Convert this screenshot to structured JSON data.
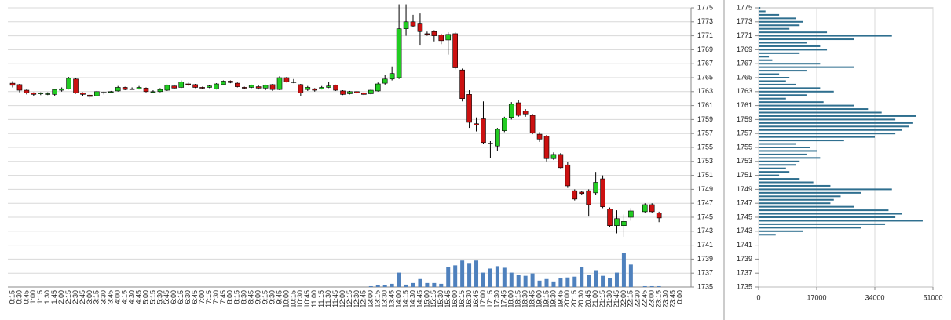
{
  "chart_data": [
    {
      "type": "candlestick",
      "categories": [
        "0:15",
        "0:30",
        "0:45",
        "1:00",
        "1:15",
        "1:30",
        "1:45",
        "2:00",
        "2:15",
        "2:30",
        "2:45",
        "3:00",
        "3:15",
        "3:30",
        "3:45",
        "4:00",
        "4:15",
        "4:30",
        "4:45",
        "5:00",
        "5:15",
        "5:30",
        "5:45",
        "6:00",
        "6:15",
        "6:30",
        "6:45",
        "7:00",
        "7:15",
        "7:30",
        "7:45",
        "8:00",
        "8:15",
        "8:30",
        "8:45",
        "9:00",
        "9:15",
        "9:30",
        "9:45",
        "10:00",
        "10:15",
        "10:30",
        "10:45",
        "11:00",
        "11:15",
        "11:30",
        "11:45",
        "12:00",
        "12:15",
        "12:30",
        "12:45",
        "13:00",
        "13:15",
        "13:30",
        "13:45",
        "14:00",
        "14:15",
        "14:30",
        "14:45",
        "15:00",
        "15:15",
        "15:30",
        "15:45",
        "16:00",
        "16:15",
        "16:30",
        "16:45",
        "17:00",
        "17:15",
        "17:30",
        "17:45",
        "18:00",
        "18:15",
        "18:30",
        "18:45",
        "19:00",
        "19:15",
        "19:30",
        "19:45",
        "20:00",
        "20:15",
        "20:30",
        "20:45",
        "21:00",
        "21:15",
        "21:30",
        "21:45",
        "22:00",
        "22:15",
        "22:30",
        "22:45",
        "23:00",
        "23:15",
        "23:30",
        "23:45",
        "0:00"
      ],
      "open": [
        1764.2,
        1764.0,
        1763.2,
        1762.8,
        1762.7,
        1762.7,
        1762.6,
        1763.2,
        1763.4,
        1764.8,
        1762.8,
        1762.5,
        1762.4,
        1762.8,
        1762.9,
        1763.1,
        1763.6,
        1763.4,
        1763.4,
        1763.5,
        1763.0,
        1763.0,
        1763.2,
        1763.8,
        1763.6,
        1764.1,
        1764.0,
        1763.6,
        1763.6,
        1763.4,
        1764.0,
        1764.5,
        1764.2,
        1763.6,
        1763.6,
        1763.7,
        1763.5,
        1764.0,
        1763.3,
        1765.0,
        1764.4,
        1764.0,
        1763.3,
        1763.4,
        1763.4,
        1763.6,
        1763.9,
        1763.1,
        1762.7,
        1763.0,
        1762.8,
        1762.7,
        1763.1,
        1764.2,
        1764.8,
        1765.0,
        1772.0,
        1773.0,
        1772.8,
        1771.3,
        1771.6,
        1771.1,
        1770.4,
        1771.3,
        1766.1,
        1762.6,
        1758.4,
        1759.1,
        1755.6,
        1755.2,
        1757.4,
        1759.3,
        1761.4,
        1760.2,
        1759.6,
        1756.9,
        1756.6,
        1753.4,
        1754.0,
        1752.5,
        1748.8,
        1748.6,
        1748.8,
        1748.5,
        1750.5,
        1746.2,
        1743.8,
        1743.8,
        1745.0,
        null,
        1745.8,
        1746.8,
        1745.6,
        null,
        null,
        null
      ],
      "high": [
        1764.5,
        1764.1,
        1763.3,
        1762.9,
        1762.9,
        1762.9,
        1763.4,
        1763.6,
        1765.1,
        1764.9,
        1762.9,
        1762.6,
        1763.1,
        1763.0,
        1763.1,
        1763.8,
        1763.7,
        1763.6,
        1763.8,
        1763.6,
        1763.2,
        1763.5,
        1764.0,
        1764.0,
        1764.6,
        1764.3,
        1764.1,
        1763.7,
        1763.9,
        1764.2,
        1764.6,
        1764.6,
        1764.3,
        1763.7,
        1764.0,
        1763.9,
        1764.0,
        1764.1,
        1765.2,
        1765.1,
        1764.8,
        1764.1,
        1763.8,
        1763.5,
        1763.8,
        1764.4,
        1764.0,
        1763.2,
        1763.1,
        1763.1,
        1762.9,
        1763.3,
        1764.3,
        1765.4,
        1766.6,
        1775.5,
        1775.5,
        1774.0,
        1774.2,
        1771.6,
        1771.8,
        1771.3,
        1771.5,
        1771.5,
        1766.3,
        1763.2,
        1759.3,
        1761.6,
        1755.9,
        1757.8,
        1759.4,
        1761.5,
        1761.8,
        1760.5,
        1759.8,
        1757.2,
        1756.8,
        1754.3,
        1754.2,
        1752.9,
        1749.0,
        1748.8,
        1749.0,
        1751.5,
        1751.0,
        1746.4,
        1746.0,
        1745.4,
        1746.3,
        null,
        1747.0,
        1747.0,
        1745.8,
        null,
        null,
        null
      ],
      "low": [
        1763.6,
        1762.9,
        1762.6,
        1762.4,
        1762.5,
        1762.5,
        1762.4,
        1763.0,
        1763.3,
        1762.7,
        1762.4,
        1762.0,
        1762.3,
        1762.6,
        1762.8,
        1763.0,
        1763.2,
        1763.3,
        1763.3,
        1762.9,
        1762.9,
        1762.9,
        1763.1,
        1763.4,
        1763.5,
        1763.8,
        1763.5,
        1763.4,
        1763.5,
        1763.3,
        1763.9,
        1764.2,
        1763.6,
        1763.4,
        1763.5,
        1763.3,
        1763.2,
        1763.1,
        1763.2,
        1764.3,
        1764.2,
        1762.4,
        1763.1,
        1763.0,
        1763.3,
        1763.5,
        1763.1,
        1762.5,
        1762.6,
        1762.7,
        1762.5,
        1762.6,
        1763.0,
        1764.0,
        1764.6,
        1764.8,
        1771.0,
        1772.2,
        1769.6,
        1771.0,
        1770.2,
        1769.8,
        1768.3,
        1766.2,
        1761.6,
        1757.8,
        1757.3,
        1755.5,
        1753.5,
        1754.5,
        1757.2,
        1759.0,
        1759.4,
        1759.4,
        1756.9,
        1755.8,
        1753.0,
        1753.2,
        1752.0,
        1749.2,
        1747.4,
        1748.2,
        1745.1,
        1748.2,
        1746.3,
        1743.6,
        1742.7,
        1742.2,
        1744.5,
        null,
        1745.6,
        1745.6,
        1744.3,
        null,
        null,
        null
      ],
      "close": [
        1763.9,
        1763.2,
        1762.8,
        1762.6,
        1762.8,
        1762.7,
        1763.3,
        1763.4,
        1764.9,
        1762.8,
        1762.6,
        1762.3,
        1763.0,
        1762.9,
        1763.0,
        1763.6,
        1763.3,
        1763.4,
        1763.6,
        1763.0,
        1763.0,
        1763.3,
        1763.9,
        1763.5,
        1764.4,
        1764.0,
        1763.6,
        1763.5,
        1763.8,
        1764.1,
        1764.5,
        1764.3,
        1763.7,
        1763.5,
        1763.9,
        1763.5,
        1763.9,
        1763.3,
        1765.0,
        1764.4,
        1764.4,
        1762.8,
        1763.6,
        1763.2,
        1763.6,
        1763.8,
        1763.2,
        1762.6,
        1763.0,
        1762.8,
        1762.6,
        1763.2,
        1764.1,
        1764.8,
        1765.6,
        1772.0,
        1773.0,
        1772.4,
        1771.6,
        1771.2,
        1771.0,
        1770.3,
        1771.2,
        1766.4,
        1762.0,
        1758.6,
        1758.2,
        1755.7,
        1755.5,
        1757.6,
        1759.2,
        1761.2,
        1759.6,
        1759.8,
        1757.1,
        1756.2,
        1753.4,
        1754.0,
        1752.1,
        1749.5,
        1747.6,
        1748.4,
        1746.8,
        1750.0,
        1746.5,
        1743.8,
        1744.8,
        1744.4,
        1745.9,
        null,
        1746.8,
        1745.8,
        1744.9,
        null,
        null,
        null
      ],
      "volume": [
        0,
        0,
        0,
        0,
        0,
        0,
        0,
        0,
        0,
        0,
        0,
        0,
        0,
        0,
        0,
        0,
        0,
        0,
        0,
        0,
        0,
        0,
        0,
        0,
        0,
        0,
        0,
        0,
        0,
        0,
        0,
        0,
        0,
        0,
        0,
        0,
        0,
        0,
        0,
        0,
        0,
        0,
        0,
        0,
        0,
        0,
        0,
        0,
        0,
        0,
        0,
        1,
        2,
        2,
        4,
        18,
        3,
        5,
        10,
        5,
        5,
        4,
        25,
        27,
        33,
        30,
        33,
        18,
        23,
        26,
        24,
        18,
        15,
        14,
        17,
        8,
        10,
        7,
        11,
        12,
        13,
        25,
        15,
        21,
        14,
        11,
        18,
        43,
        28,
        null,
        1,
        1,
        1,
        null,
        null,
        null
      ],
      "ylim": [
        1735,
        1775
      ],
      "yticks": [
        1735,
        1737,
        1739,
        1741,
        1743,
        1745,
        1747,
        1749,
        1751,
        1753,
        1755,
        1757,
        1759,
        1761,
        1763,
        1765,
        1767,
        1769,
        1771,
        1773,
        1775
      ],
      "up_color": "#22cc22",
      "down_color": "#cc1111",
      "volume_color": "#4f81bd",
      "grid": true
    },
    {
      "type": "barh",
      "y": [
        1775,
        1774.5,
        1774,
        1773.5,
        1773,
        1772.5,
        1772,
        1771.5,
        1771,
        1770.5,
        1770,
        1769.5,
        1769,
        1768.5,
        1768,
        1767.5,
        1767,
        1766.5,
        1766,
        1765.5,
        1765,
        1764.5,
        1764,
        1763.5,
        1763,
        1762.5,
        1762,
        1761.5,
        1761,
        1760.5,
        1760,
        1759.5,
        1759,
        1758.5,
        1758,
        1757.5,
        1757,
        1756.5,
        1756,
        1755.5,
        1755,
        1754.5,
        1754,
        1753.5,
        1753,
        1752.5,
        1752,
        1751.5,
        1751,
        1750.5,
        1750,
        1749.5,
        1749,
        1748.5,
        1748,
        1747.5,
        1747,
        1746.5,
        1746,
        1745.5,
        1745,
        1744.5,
        1744,
        1743.5,
        1743,
        1742.5
      ],
      "values": [
        500,
        2000,
        6000,
        11000,
        13000,
        12000,
        9000,
        20000,
        39000,
        28000,
        14000,
        18000,
        20000,
        12000,
        3000,
        4000,
        18000,
        28000,
        14000,
        6000,
        9000,
        8000,
        11000,
        18000,
        22000,
        14000,
        8000,
        19000,
        28000,
        32000,
        36000,
        46000,
        40000,
        45000,
        44000,
        42000,
        40000,
        34000,
        25000,
        11000,
        15000,
        17000,
        14000,
        18000,
        12000,
        11000,
        8000,
        9000,
        6000,
        12000,
        16000,
        21000,
        39000,
        30000,
        24000,
        22000,
        21000,
        28000,
        38000,
        42000,
        40000,
        48000,
        37000,
        30000,
        13000,
        5000
      ],
      "xlim": [
        0,
        51000
      ],
      "xticks": [
        0,
        17000,
        34000,
        51000
      ],
      "ylim": [
        1735,
        1775
      ],
      "yticks": [
        1735,
        1737,
        1739,
        1741,
        1743,
        1745,
        1747,
        1749,
        1751,
        1753,
        1755,
        1757,
        1759,
        1761,
        1763,
        1765,
        1767,
        1769,
        1771,
        1773,
        1775
      ],
      "color": "#2f6f8f",
      "grid": true
    }
  ]
}
